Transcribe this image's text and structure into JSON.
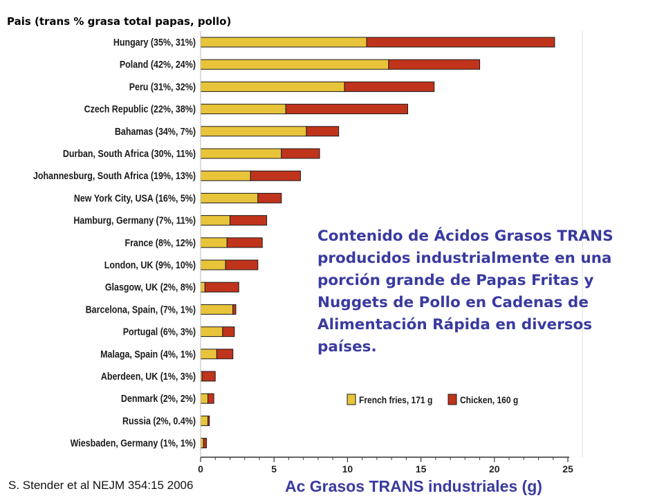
{
  "top_label": "Pais (trans % grasa total papas, pollo)",
  "note": "Contenido de Ácidos Grasos TRANS producidos industrialmente en una porción grande de Papas Fritas y Nuggets de Pollo en Cadenas de Alimentación Rápida en  diversos países.",
  "citation": "S. Stender et al NEJM 354:15  2006",
  "colors": {
    "french_fries": "#e8c43a",
    "chicken": "#c0341c",
    "axis": "#333333"
  },
  "chart_data": {
    "type": "bar",
    "orientation": "horizontal",
    "stacked": true,
    "categories": [
      "Hungary (35%, 31%)",
      "Poland (42%, 24%)",
      "Peru (31%, 32%)",
      "Czech Republic (22%, 38%)",
      "Bahamas (34%, 7%)",
      "Durban, South Africa (30%, 11%)",
      "Johannesburg, South Africa (19%, 13%)",
      "New York City, USA (16%, 5%)",
      "Hamburg, Germany (7%, 11%)",
      "France (8%, 12%)",
      "London, UK (9%, 10%)",
      "Glasgow, UK (2%, 8%)",
      "Barcelona, Spain, (7%, 1%)",
      "Portugal (6%, 3%)",
      "Malaga, Spain (4%, 1%)",
      "Aberdeen, UK (1%, 3%)",
      "Denmark (2%, 2%)",
      "Russia (2%, 0.4%)",
      "Wiesbaden, Germany (1%, 1%)"
    ],
    "series": [
      {
        "name": "French fries, 171 g",
        "color": "#e8c43a",
        "values": [
          11.3,
          12.8,
          9.8,
          5.8,
          7.2,
          5.5,
          3.4,
          3.9,
          2.0,
          1.8,
          1.7,
          0.3,
          2.2,
          1.5,
          1.1,
          0.1,
          0.5,
          0.5,
          0.2
        ]
      },
      {
        "name": "Chicken, 160 g",
        "color": "#c0341c",
        "values": [
          12.8,
          6.2,
          6.1,
          8.3,
          2.2,
          2.6,
          3.4,
          1.6,
          2.5,
          2.4,
          2.2,
          2.3,
          0.2,
          0.8,
          1.1,
          0.9,
          0.4,
          0.1,
          0.2
        ]
      }
    ],
    "xlabel": "Ac Grasos TRANS industriales (g)",
    "xlim": [
      0,
      25
    ],
    "xticks": [
      0,
      5,
      10,
      15,
      20,
      25
    ],
    "xtick_labels": [
      "0",
      "5",
      "10",
      "15",
      "20",
      "25"
    ],
    "legend_position": "bottom-right",
    "grid": false
  }
}
